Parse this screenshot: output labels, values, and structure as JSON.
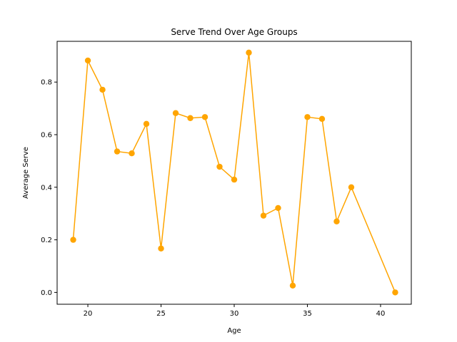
{
  "chart_data": {
    "type": "line",
    "title": "Serve Trend Over Age Groups",
    "xlabel": "Age",
    "ylabel": "Average Serve",
    "xlim": [
      17.9,
      42.1
    ],
    "ylim": [
      -0.045,
      0.955
    ],
    "x_ticks": [
      20,
      25,
      30,
      35,
      40
    ],
    "y_ticks": [
      0.0,
      0.2,
      0.4,
      0.6,
      0.8
    ],
    "grid": false,
    "legend": "none",
    "series": [
      {
        "color": "#ffa500",
        "x": [
          19,
          20,
          21,
          22,
          23,
          24,
          25,
          26,
          27,
          28,
          29,
          30,
          31,
          32,
          33,
          34,
          35,
          36,
          37,
          38,
          41
        ],
        "y": [
          0.2,
          0.882,
          0.771,
          0.536,
          0.529,
          0.641,
          0.167,
          0.682,
          0.663,
          0.667,
          0.478,
          0.429,
          0.912,
          0.292,
          0.321,
          0.026,
          0.667,
          0.66,
          0.27,
          0.4,
          0.0
        ]
      }
    ]
  }
}
